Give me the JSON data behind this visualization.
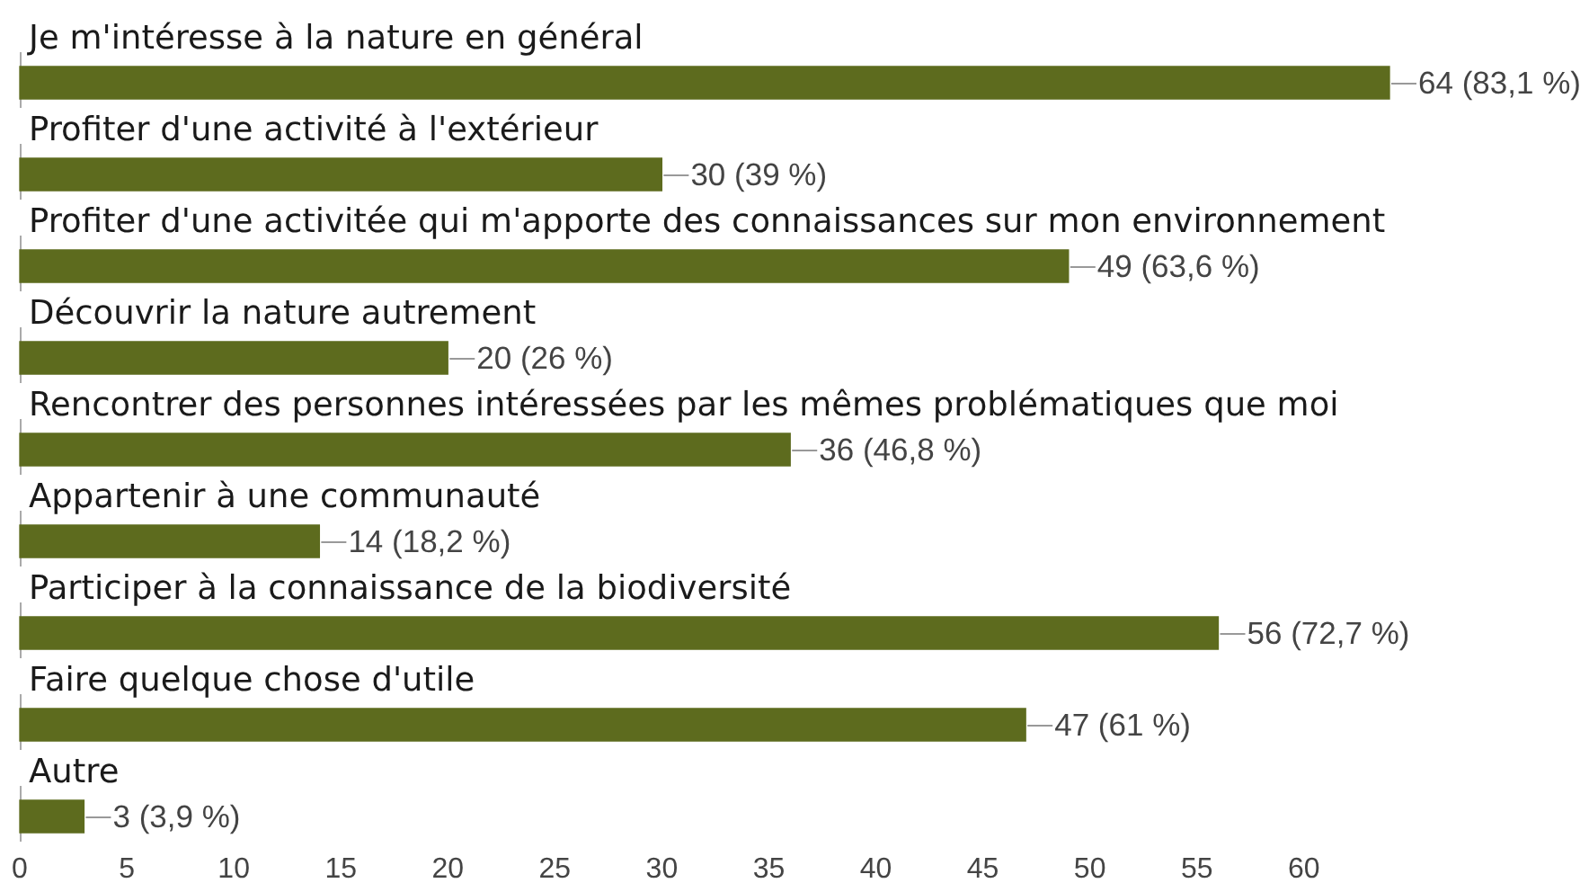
{
  "chart_data": {
    "type": "bar",
    "orientation": "horizontal",
    "categories": [
      "Je m'intéresse à la nature en général",
      "Profiter d'une activité à l'extérieur",
      "Profiter d'une activitée qui m'apporte des connaissances sur mon environnement",
      "Découvrir la nature autrement",
      "Rencontrer des personnes intéressées par les mêmes problématiques que moi",
      "Appartenir à une communauté",
      "Participer à la connaissance de la biodiversité",
      "Faire quelque chose d'utile",
      "Autre"
    ],
    "values": [
      64,
      30,
      49,
      20,
      36,
      14,
      56,
      47,
      3
    ],
    "value_labels": [
      "64 (83,1 %)",
      "30 (39 %)",
      "49 (63,6 %)",
      "20 (26 %)",
      "36 (46,8 %)",
      "14 (18,2 %)",
      "56 (72,7 %)",
      "47 (61 %)",
      "3 (3,9 %)"
    ],
    "color": "#5d6b1e",
    "xlim": [
      0,
      64
    ],
    "xticks": [
      0,
      5,
      10,
      15,
      20,
      25,
      30,
      35,
      40,
      45,
      50,
      55,
      60
    ],
    "grid": false,
    "legend": false
  }
}
